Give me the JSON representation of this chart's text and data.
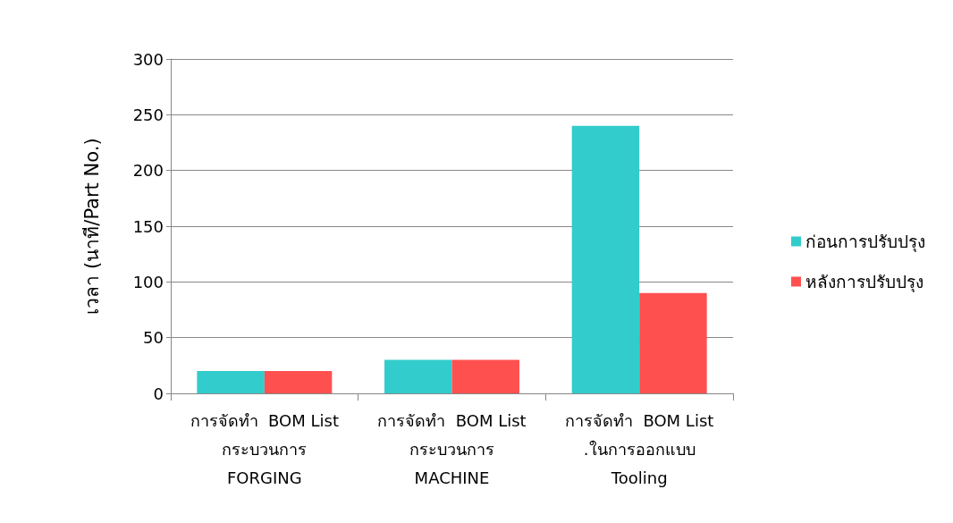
{
  "chart_data": {
    "type": "bar",
    "ylabel": "เวลา (นาที/Part No.)",
    "categories": [
      "การจัดทำ  BOM List\nกระบวนการ\nFORGING",
      "การจัดทำ  BOM List\nกระบวนการ\nMACHINE",
      "การจัดทำ  BOM List\n.ในการออกแบบ\nTooling"
    ],
    "series": [
      {
        "name": "ก่อนการปรับปรุง",
        "color": "#33cccc",
        "values": [
          20,
          30,
          240
        ]
      },
      {
        "name": "หลังการปรับปรุง",
        "color": "#ff5050",
        "values": [
          20,
          30,
          90
        ]
      }
    ],
    "ylim": [
      0,
      300
    ],
    "yticks": [
      0,
      50,
      100,
      150,
      200,
      250,
      300
    ],
    "grid": "y",
    "legend": "right"
  }
}
